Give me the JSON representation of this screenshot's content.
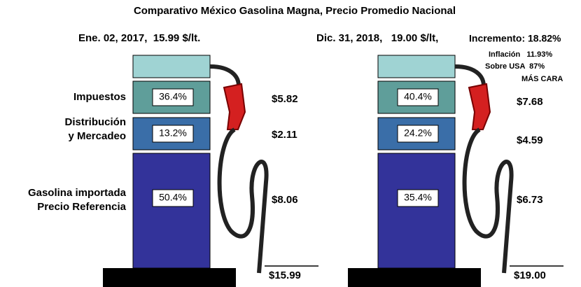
{
  "title": "Comparativo México Gasolina Magna, Precio Promedio Nacional",
  "row_labels": [
    [
      "Impuestos"
    ],
    [
      "Distribución",
      "y Mercadeo"
    ],
    [
      "Gasolina importada",
      "Precio Referencia"
    ]
  ],
  "pumps": [
    {
      "header": "Ene. 02, 2017,  15.99 $/lt.",
      "percents": [
        "36.4%",
        "13.2%",
        "50.4%"
      ],
      "amounts": [
        "$5.82",
        "$2.11",
        "$8.06"
      ],
      "total": "$15.99"
    },
    {
      "header": "Dic. 31, 2018,   19.00 $/lt,",
      "percents": [
        "40.4%",
        "24.2%",
        "35.4%"
      ],
      "amounts": [
        "$7.68",
        "$4.59",
        "$6.73"
      ],
      "total": "$19.00"
    }
  ],
  "notes": {
    "increment": "Incremento: 18.82%",
    "inflation": "Inflación   11.93%",
    "usa": "Sobre USA  87%",
    "more_expensive": "MÁS CARA"
  }
}
